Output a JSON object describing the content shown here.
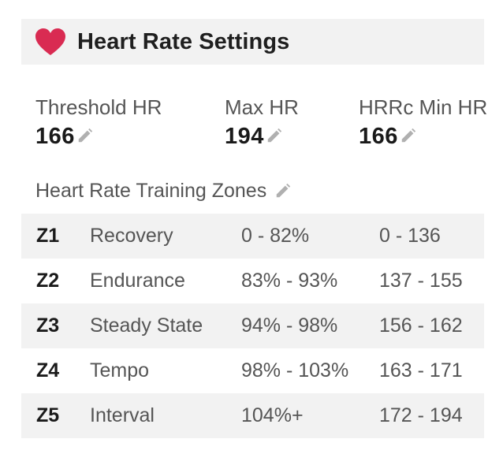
{
  "header": {
    "title": "Heart Rate Settings",
    "icon": "heart-icon",
    "icon_color": "#d92b52"
  },
  "metrics": [
    {
      "label": "Threshold HR",
      "value": "166"
    },
    {
      "label": "Max HR",
      "value": "194"
    },
    {
      "label": "HRRc Min HR",
      "value": "166"
    }
  ],
  "zones_section": {
    "label": "Heart Rate Training Zones"
  },
  "zones": [
    {
      "id": "Z1",
      "name": "Recovery",
      "percent": "0 - 82%",
      "bpm": "0 - 136"
    },
    {
      "id": "Z2",
      "name": "Endurance",
      "percent": "83% - 93%",
      "bpm": "137 - 155"
    },
    {
      "id": "Z3",
      "name": "Steady State",
      "percent": "94% - 98%",
      "bpm": "156 - 162"
    },
    {
      "id": "Z4",
      "name": "Tempo",
      "percent": "98% - 103%",
      "bpm": "163 - 171"
    },
    {
      "id": "Z5",
      "name": "Interval",
      "percent": "104%+",
      "bpm": "172 - 194"
    }
  ],
  "colors": {
    "accent": "#d92b52",
    "stripe": "#f2f2f2",
    "muted_text": "#555555"
  }
}
